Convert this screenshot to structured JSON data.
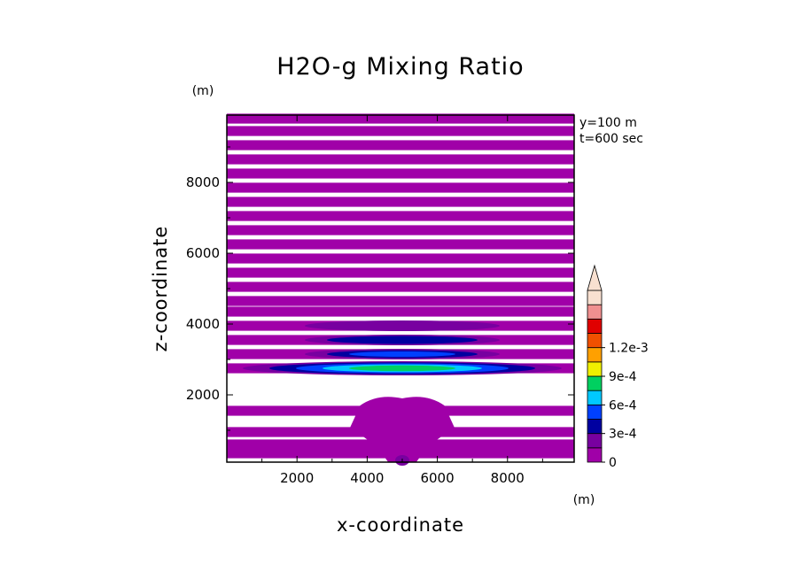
{
  "chart_data": {
    "type": "heatmap",
    "title": "H2O-g Mixing Ratio",
    "xlabel": "x-coordinate",
    "ylabel": "z-coordinate",
    "x_unit": "(m)",
    "y_unit": "(m)",
    "xlim": [
      0,
      9900
    ],
    "ylim": [
      100,
      9900
    ],
    "x_ticks": [
      2000,
      4000,
      6000,
      8000
    ],
    "y_ticks": [
      2000,
      4000,
      6000,
      8000
    ],
    "x_tick_labels": [
      "2000",
      "4000",
      "6000",
      "8000"
    ],
    "y_tick_labels": [
      "2000",
      "4000",
      "6000",
      "8000"
    ],
    "annotations": [
      "y=100  m",
      "t=600  sec"
    ],
    "colorbar": {
      "levels": [
        0,
        0.00015,
        0.0003,
        0.00045,
        0.0006,
        0.00075,
        0.0009,
        0.00105,
        0.0012,
        0.00135
      ],
      "colors": [
        "#a000a8",
        "#7800a0",
        "#0000a0",
        "#0040ff",
        "#00c8ff",
        "#00d060",
        "#f0f000",
        "#ffa000",
        "#f05000",
        "#e00000",
        "#f09090",
        "#f8e0d0"
      ],
      "labels": [
        {
          "value": 0,
          "text": "0"
        },
        {
          "value": 0.0003,
          "text": "3e-4"
        },
        {
          "value": 0.0006,
          "text": "6e-4"
        },
        {
          "value": 0.0009,
          "text": "9e-4"
        },
        {
          "value": 0.0012,
          "text": "1.2e-3"
        }
      ],
      "extend": "max"
    },
    "upper_band_centers_z": [
      350,
      600,
      950,
      1550,
      2750,
      3150,
      3550,
      3950,
      4350,
      4650,
      5050,
      5450,
      5850,
      6250,
      6650,
      7050,
      7450,
      7850,
      8250,
      8650,
      9050,
      9450,
      9800
    ],
    "upper_band_half_width_z": 140,
    "max_region": {
      "x": 5000,
      "z": 2750,
      "max_level_index": 5
    }
  }
}
